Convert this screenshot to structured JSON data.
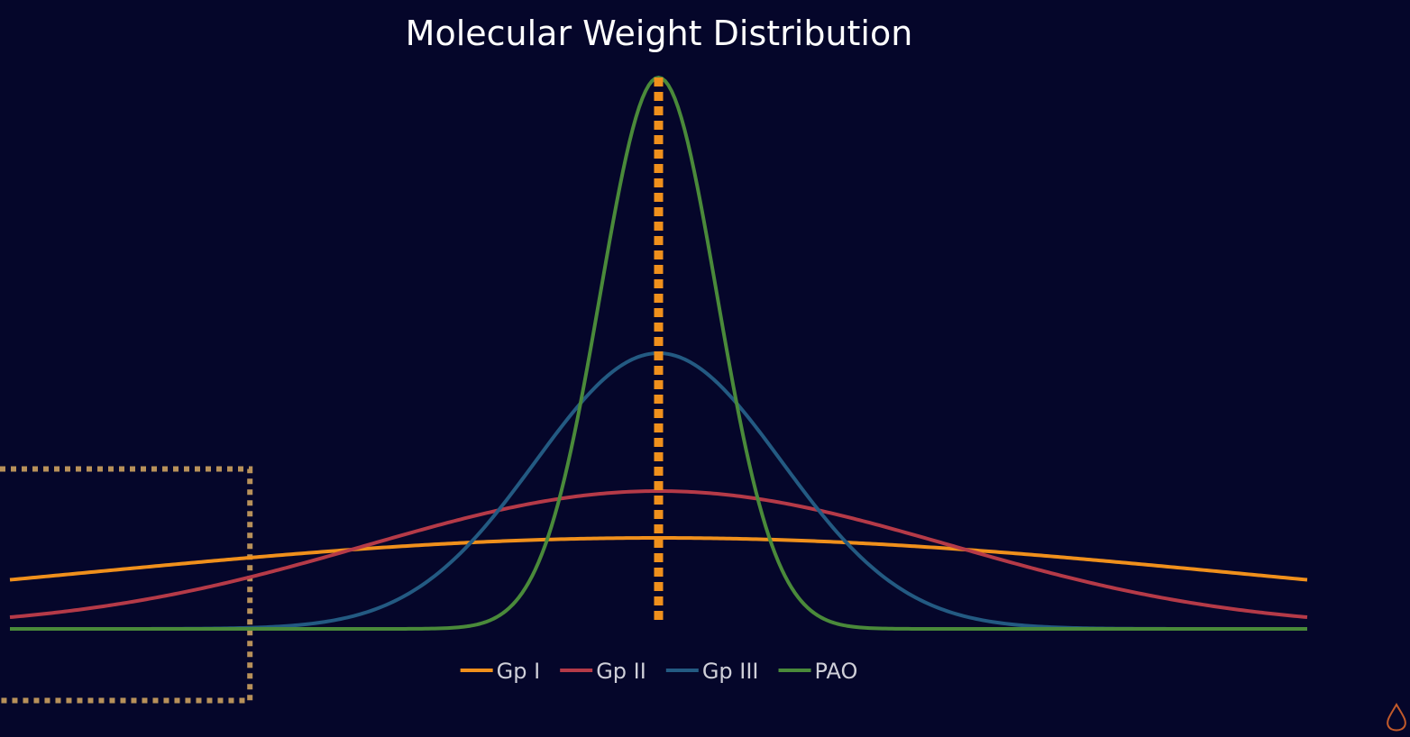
{
  "chart_data": {
    "type": "line",
    "title": "Molecular Weight Distribution",
    "xlabel": "",
    "ylabel": "",
    "xlim": [
      -1,
      1
    ],
    "ylim": [
      0,
      1
    ],
    "grid": false,
    "legend_position": "bottom-center",
    "center_x": 0,
    "series": [
      {
        "name": "Gp I",
        "color": "#f0901c",
        "peak": 0.165,
        "spread": 0.9
      },
      {
        "name": "Gp II",
        "color": "#b53a48",
        "peak": 0.25,
        "spread": 0.45
      },
      {
        "name": "Gp III",
        "color": "#235a82",
        "peak": 0.5,
        "spread": 0.19
      },
      {
        "name": "PAO",
        "color": "#4a8a3a",
        "peak": 1.0,
        "spread": 0.09
      }
    ],
    "center_marker": {
      "style": "dotted",
      "color": "#f0901c"
    },
    "highlight_region": {
      "x_range": [
        -1,
        -0.63
      ],
      "y_range": [
        -0.13,
        0.29
      ],
      "color": "#b8915a"
    }
  },
  "watermark": {
    "icon": "oil-drop-icon"
  }
}
